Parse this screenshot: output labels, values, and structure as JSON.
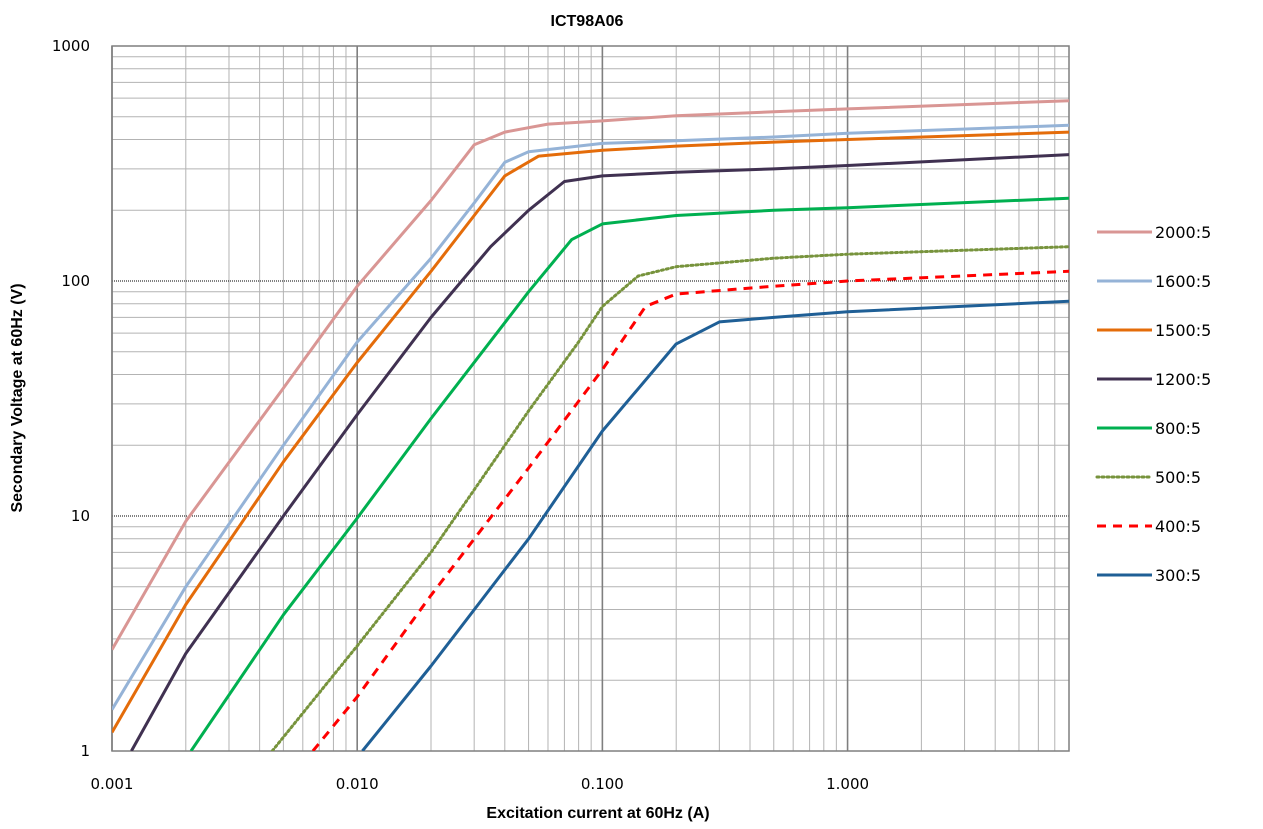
{
  "chart_data": {
    "type": "line",
    "title": "ICT98A06",
    "xlabel": "Excitation current at 60Hz (A)",
    "ylabel": "Secondary Voltage at 60Hz (V)",
    "x_scale": "log",
    "y_scale": "log",
    "xlim": [
      0.001,
      8
    ],
    "ylim": [
      1,
      1000
    ],
    "x_ticks": [
      0.001,
      0.01,
      0.1,
      1
    ],
    "x_tick_labels": [
      "0.001",
      "0.010",
      "0.100",
      "1.000"
    ],
    "y_ticks": [
      1,
      10,
      100,
      1000
    ],
    "y_tick_labels": [
      "1",
      "10",
      "100",
      "1000"
    ],
    "grid": true,
    "legend_position": "right",
    "series": [
      {
        "name": "2000:5",
        "color": "#d99694",
        "dash": "solid",
        "points": [
          [
            0.001,
            2.7
          ],
          [
            0.002,
            9.5
          ],
          [
            0.005,
            35
          ],
          [
            0.01,
            95
          ],
          [
            0.02,
            220
          ],
          [
            0.03,
            380
          ],
          [
            0.04,
            430
          ],
          [
            0.06,
            465
          ],
          [
            0.1,
            480
          ],
          [
            0.2,
            505
          ],
          [
            0.5,
            525
          ],
          [
            1,
            540
          ],
          [
            8,
            585
          ]
        ]
      },
      {
        "name": "1600:5",
        "color": "#95b3d7",
        "dash": "solid",
        "points": [
          [
            0.001,
            1.5
          ],
          [
            0.002,
            5
          ],
          [
            0.005,
            20
          ],
          [
            0.01,
            55
          ],
          [
            0.02,
            125
          ],
          [
            0.03,
            215
          ],
          [
            0.04,
            320
          ],
          [
            0.05,
            355
          ],
          [
            0.1,
            385
          ],
          [
            0.2,
            395
          ],
          [
            0.5,
            410
          ],
          [
            1,
            425
          ],
          [
            8,
            460
          ]
        ]
      },
      {
        "name": "1500:5",
        "color": "#e46c0a",
        "dash": "solid",
        "points": [
          [
            0.001,
            1.2
          ],
          [
            0.002,
            4.2
          ],
          [
            0.005,
            17
          ],
          [
            0.01,
            45
          ],
          [
            0.02,
            110
          ],
          [
            0.03,
            190
          ],
          [
            0.04,
            280
          ],
          [
            0.055,
            340
          ],
          [
            0.1,
            360
          ],
          [
            0.2,
            375
          ],
          [
            0.5,
            390
          ],
          [
            1,
            400
          ],
          [
            8,
            430
          ]
        ]
      },
      {
        "name": "1200:5",
        "color": "#403151",
        "dash": "solid",
        "points": [
          [
            0.0012,
            1
          ],
          [
            0.002,
            2.6
          ],
          [
            0.005,
            10
          ],
          [
            0.01,
            27
          ],
          [
            0.02,
            70
          ],
          [
            0.035,
            140
          ],
          [
            0.05,
            200
          ],
          [
            0.07,
            265
          ],
          [
            0.1,
            280
          ],
          [
            0.2,
            290
          ],
          [
            0.5,
            300
          ],
          [
            1,
            310
          ],
          [
            8,
            345
          ]
        ]
      },
      {
        "name": "800:5",
        "color": "#00b050",
        "dash": "solid",
        "points": [
          [
            0.0021,
            1
          ],
          [
            0.005,
            3.8
          ],
          [
            0.01,
            9.8
          ],
          [
            0.02,
            26
          ],
          [
            0.05,
            90
          ],
          [
            0.075,
            150
          ],
          [
            0.1,
            175
          ],
          [
            0.2,
            190
          ],
          [
            0.5,
            200
          ],
          [
            1,
            205
          ],
          [
            8,
            225
          ]
        ]
      },
      {
        "name": "500:5",
        "color": "#77933c",
        "dash": "dotted",
        "points": [
          [
            0.0045,
            1
          ],
          [
            0.01,
            2.8
          ],
          [
            0.02,
            7
          ],
          [
            0.05,
            28
          ],
          [
            0.08,
            55
          ],
          [
            0.1,
            78
          ],
          [
            0.14,
            105
          ],
          [
            0.2,
            115
          ],
          [
            0.5,
            125
          ],
          [
            1,
            130
          ],
          [
            8,
            140
          ]
        ]
      },
      {
        "name": "400:5",
        "color": "#ff0000",
        "dash": "dashed",
        "points": [
          [
            0.0066,
            1
          ],
          [
            0.01,
            1.7
          ],
          [
            0.02,
            4.6
          ],
          [
            0.05,
            16
          ],
          [
            0.1,
            42
          ],
          [
            0.15,
            78
          ],
          [
            0.2,
            88
          ],
          [
            0.5,
            95
          ],
          [
            1,
            100
          ],
          [
            8,
            110
          ]
        ]
      },
      {
        "name": "300:5",
        "color": "#1f5f96",
        "dash": "solid",
        "points": [
          [
            0.0105,
            1
          ],
          [
            0.02,
            2.3
          ],
          [
            0.05,
            8
          ],
          [
            0.1,
            23
          ],
          [
            0.2,
            54
          ],
          [
            0.3,
            67
          ],
          [
            0.5,
            70
          ],
          [
            1,
            74
          ],
          [
            8,
            82
          ]
        ]
      }
    ]
  }
}
